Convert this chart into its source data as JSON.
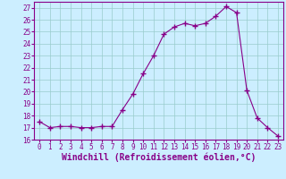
{
  "x": [
    0,
    1,
    2,
    3,
    4,
    5,
    6,
    7,
    8,
    9,
    10,
    11,
    12,
    13,
    14,
    15,
    16,
    17,
    18,
    19,
    20,
    21,
    22,
    23
  ],
  "y": [
    17.5,
    17.0,
    17.1,
    17.1,
    17.0,
    17.0,
    17.1,
    17.1,
    18.5,
    19.8,
    21.5,
    23.0,
    24.8,
    25.4,
    25.7,
    25.5,
    25.7,
    26.3,
    27.1,
    26.6,
    20.1,
    17.8,
    17.0,
    16.3
  ],
  "line_color": "#880088",
  "marker": "+",
  "marker_size": 4,
  "marker_lw": 1.0,
  "bg_color": "#cceeff",
  "grid_color": "#99cccc",
  "xlabel": "Windchill (Refroidissement éolien,°C)",
  "xlabel_fontsize": 7,
  "ylim": [
    16,
    27.5
  ],
  "xlim": [
    -0.5,
    23.5
  ],
  "yticks": [
    16,
    17,
    18,
    19,
    20,
    21,
    22,
    23,
    24,
    25,
    26,
    27
  ],
  "xticks": [
    0,
    1,
    2,
    3,
    4,
    5,
    6,
    7,
    8,
    9,
    10,
    11,
    12,
    13,
    14,
    15,
    16,
    17,
    18,
    19,
    20,
    21,
    22,
    23
  ],
  "tick_fontsize": 5.5,
  "label_color": "#880088"
}
